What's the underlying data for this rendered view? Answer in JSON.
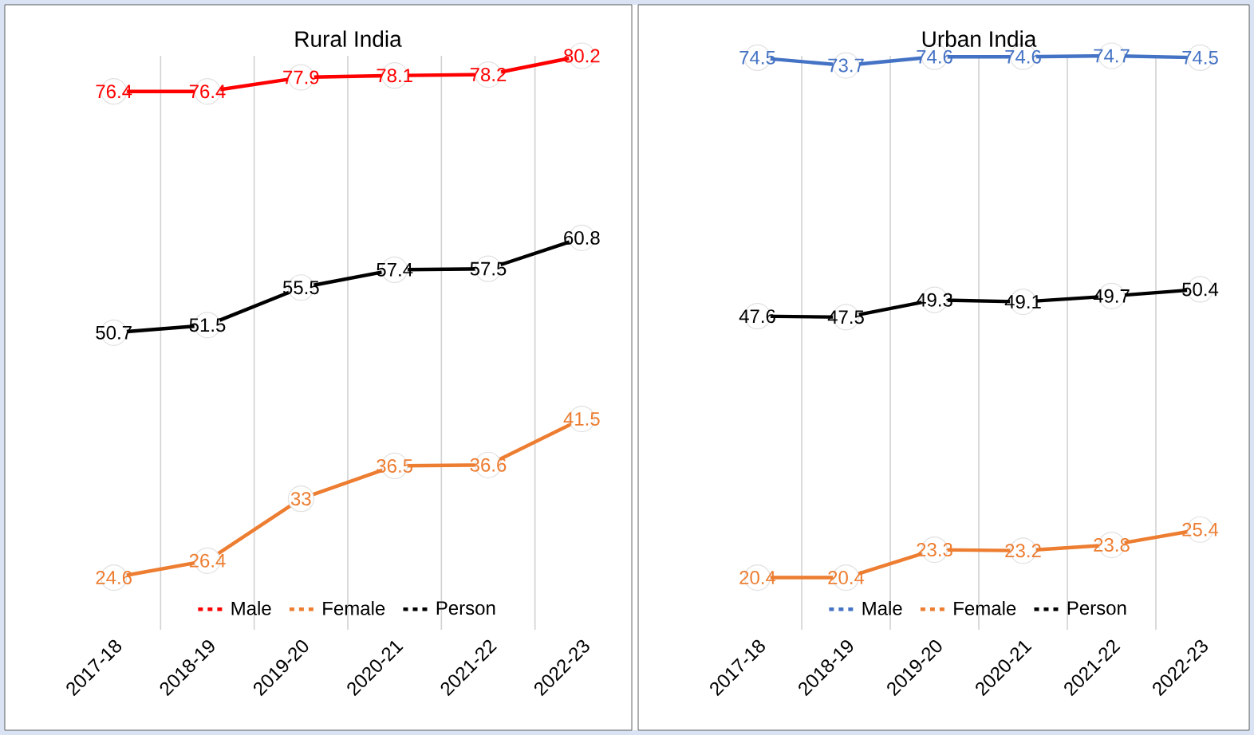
{
  "chart_data": [
    {
      "type": "line",
      "title": "Rural India",
      "categories": [
        "2017-18",
        "2018-19",
        "2019-20",
        "2020-21",
        "2021-22",
        "2022-23"
      ],
      "series": [
        {
          "name": "Male",
          "color": "#ff0000",
          "values": [
            76.4,
            76.4,
            77.9,
            78.1,
            78.2,
            80.2
          ]
        },
        {
          "name": "Female",
          "color": "#ed7d31",
          "values": [
            24.6,
            26.4,
            33,
            36.5,
            36.6,
            41.5
          ]
        },
        {
          "name": "Person",
          "color": "#000000",
          "values": [
            50.7,
            51.5,
            55.5,
            57.4,
            57.5,
            60.8
          ]
        }
      ],
      "data_labels": true,
      "grid": "x",
      "legend": "bottom",
      "marker": "circle"
    },
    {
      "type": "line",
      "title": "Urban India",
      "categories": [
        "2017-18",
        "2018-19",
        "2019-20",
        "2020-21",
        "2021-22",
        "2022-23"
      ],
      "series": [
        {
          "name": "Male",
          "color": "#4472c4",
          "values": [
            74.5,
            73.7,
            74.6,
            74.6,
            74.7,
            74.5
          ]
        },
        {
          "name": "Female",
          "color": "#ed7d31",
          "values": [
            20.4,
            20.4,
            23.3,
            23.2,
            23.8,
            25.4
          ]
        },
        {
          "name": "Person",
          "color": "#000000",
          "values": [
            47.6,
            47.5,
            49.3,
            49.1,
            49.7,
            50.4
          ]
        }
      ],
      "data_labels": true,
      "grid": "x",
      "legend": "bottom",
      "marker": "circle"
    }
  ]
}
